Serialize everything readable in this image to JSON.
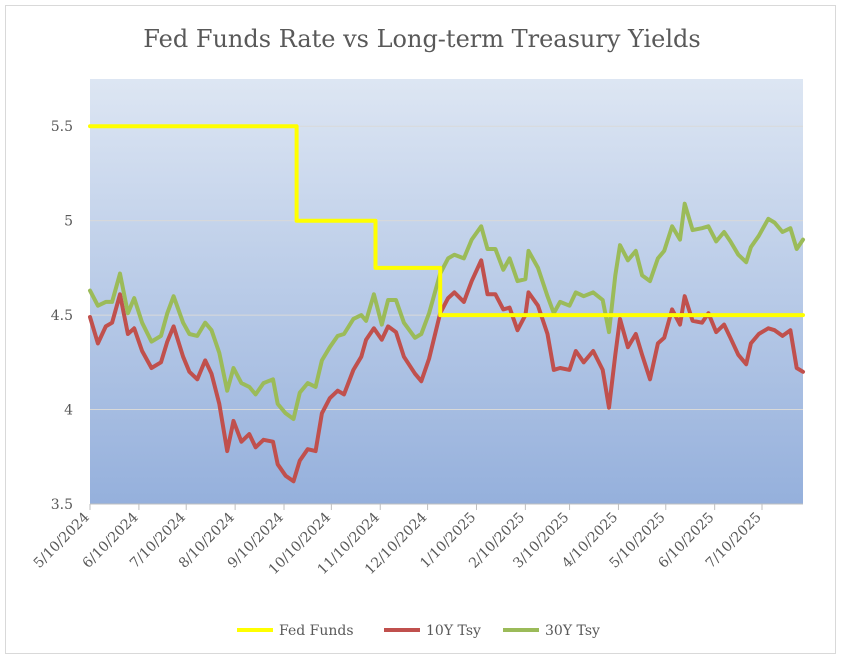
{
  "chart_data": {
    "type": "line",
    "title": "Fed Funds Rate vs Long-term Treasury Yields",
    "xlabel": "",
    "ylabel": "",
    "ylim": [
      3.5,
      5.75
    ],
    "yticks": [
      3.5,
      4,
      4.5,
      5,
      5.5
    ],
    "ytick_labels": [
      "3.5",
      "4",
      "4.5",
      "5",
      "5.5"
    ],
    "x_range": [
      "2024-05-10",
      "2025-08-05"
    ],
    "xticks": [
      "2024-05-10",
      "2024-06-10",
      "2024-07-10",
      "2024-08-10",
      "2024-09-10",
      "2024-10-10",
      "2024-11-10",
      "2024-12-10",
      "2025-01-10",
      "2025-02-10",
      "2025-03-10",
      "2025-04-10",
      "2025-05-10",
      "2025-06-10",
      "2025-07-10"
    ],
    "xtick_labels": [
      "5/10/2024",
      "6/10/2024",
      "7/10/2024",
      "8/10/2024",
      "9/10/2024",
      "10/10/2024",
      "11/10/2024",
      "12/10/2024",
      "1/10/2025",
      "2/10/2025",
      "3/10/2025",
      "4/10/2025",
      "5/10/2025",
      "6/10/2025",
      "7/10/2025"
    ],
    "grid": true,
    "legend_position": "bottom",
    "series": [
      {
        "name": "Fed Funds",
        "color": "#FFFF00",
        "points": [
          [
            "2024-05-10",
            5.5
          ],
          [
            "2024-09-18",
            5.5
          ],
          [
            "2024-09-18",
            5.0
          ],
          [
            "2024-11-07",
            5.0
          ],
          [
            "2024-11-07",
            4.75
          ],
          [
            "2024-12-18",
            4.75
          ],
          [
            "2024-12-18",
            4.5
          ],
          [
            "2025-08-05",
            4.5
          ]
        ]
      },
      {
        "name": "10Y Tsy",
        "color": "#C0504D",
        "points": [
          [
            "2024-05-10",
            4.49
          ],
          [
            "2024-05-15",
            4.35
          ],
          [
            "2024-05-20",
            4.44
          ],
          [
            "2024-05-24",
            4.46
          ],
          [
            "2024-05-29",
            4.61
          ],
          [
            "2024-06-03",
            4.4
          ],
          [
            "2024-06-07",
            4.43
          ],
          [
            "2024-06-12",
            4.31
          ],
          [
            "2024-06-18",
            4.22
          ],
          [
            "2024-06-24",
            4.25
          ],
          [
            "2024-06-28",
            4.36
          ],
          [
            "2024-07-02",
            4.44
          ],
          [
            "2024-07-08",
            4.28
          ],
          [
            "2024-07-12",
            4.2
          ],
          [
            "2024-07-17",
            4.16
          ],
          [
            "2024-07-22",
            4.26
          ],
          [
            "2024-07-26",
            4.19
          ],
          [
            "2024-07-31",
            4.03
          ],
          [
            "2024-08-05",
            3.78
          ],
          [
            "2024-08-09",
            3.94
          ],
          [
            "2024-08-14",
            3.83
          ],
          [
            "2024-08-19",
            3.87
          ],
          [
            "2024-08-23",
            3.8
          ],
          [
            "2024-08-28",
            3.84
          ],
          [
            "2024-09-03",
            3.83
          ],
          [
            "2024-09-06",
            3.71
          ],
          [
            "2024-09-11",
            3.65
          ],
          [
            "2024-09-16",
            3.62
          ],
          [
            "2024-09-20",
            3.73
          ],
          [
            "2024-09-25",
            3.79
          ],
          [
            "2024-09-30",
            3.78
          ],
          [
            "2024-10-04",
            3.98
          ],
          [
            "2024-10-09",
            4.06
          ],
          [
            "2024-10-14",
            4.1
          ],
          [
            "2024-10-18",
            4.08
          ],
          [
            "2024-10-24",
            4.21
          ],
          [
            "2024-10-29",
            4.28
          ],
          [
            "2024-11-01",
            4.37
          ],
          [
            "2024-11-06",
            4.43
          ],
          [
            "2024-11-11",
            4.37
          ],
          [
            "2024-11-15",
            4.44
          ],
          [
            "2024-11-20",
            4.41
          ],
          [
            "2024-11-25",
            4.28
          ],
          [
            "2024-12-02",
            4.19
          ],
          [
            "2024-12-06",
            4.15
          ],
          [
            "2024-12-11",
            4.27
          ],
          [
            "2024-12-18",
            4.51
          ],
          [
            "2024-12-23",
            4.59
          ],
          [
            "2024-12-27",
            4.62
          ],
          [
            "2025-01-02",
            4.57
          ],
          [
            "2025-01-07",
            4.68
          ],
          [
            "2025-01-13",
            4.79
          ],
          [
            "2025-01-17",
            4.61
          ],
          [
            "2025-01-22",
            4.61
          ],
          [
            "2025-01-27",
            4.53
          ],
          [
            "2025-01-31",
            4.54
          ],
          [
            "2025-02-05",
            4.42
          ],
          [
            "2025-02-10",
            4.5
          ],
          [
            "2025-02-12",
            4.62
          ],
          [
            "2025-02-18",
            4.55
          ],
          [
            "2025-02-24",
            4.4
          ],
          [
            "2025-02-28",
            4.21
          ],
          [
            "2025-03-04",
            4.22
          ],
          [
            "2025-03-10",
            4.21
          ],
          [
            "2025-03-14",
            4.31
          ],
          [
            "2025-03-19",
            4.25
          ],
          [
            "2025-03-25",
            4.31
          ],
          [
            "2025-03-31",
            4.21
          ],
          [
            "2025-04-04",
            4.01
          ],
          [
            "2025-04-08",
            4.29
          ],
          [
            "2025-04-11",
            4.48
          ],
          [
            "2025-04-16",
            4.33
          ],
          [
            "2025-04-21",
            4.4
          ],
          [
            "2025-04-25",
            4.29
          ],
          [
            "2025-04-30",
            4.16
          ],
          [
            "2025-05-05",
            4.35
          ],
          [
            "2025-05-09",
            4.38
          ],
          [
            "2025-05-14",
            4.53
          ],
          [
            "2025-05-19",
            4.45
          ],
          [
            "2025-05-22",
            4.6
          ],
          [
            "2025-05-27",
            4.47
          ],
          [
            "2025-06-02",
            4.46
          ],
          [
            "2025-06-06",
            4.51
          ],
          [
            "2025-06-11",
            4.41
          ],
          [
            "2025-06-16",
            4.45
          ],
          [
            "2025-06-20",
            4.38
          ],
          [
            "2025-06-25",
            4.29
          ],
          [
            "2025-06-30",
            4.24
          ],
          [
            "2025-07-03",
            4.35
          ],
          [
            "2025-07-08",
            4.4
          ],
          [
            "2025-07-14",
            4.43
          ],
          [
            "2025-07-18",
            4.42
          ],
          [
            "2025-07-23",
            4.39
          ],
          [
            "2025-07-28",
            4.42
          ],
          [
            "2025-08-01",
            4.22
          ],
          [
            "2025-08-05",
            4.2
          ]
        ]
      },
      {
        "name": "30Y Tsy",
        "color": "#9BBB59",
        "points": [
          [
            "2024-05-10",
            4.63
          ],
          [
            "2024-05-15",
            4.55
          ],
          [
            "2024-05-20",
            4.57
          ],
          [
            "2024-05-24",
            4.57
          ],
          [
            "2024-05-29",
            4.72
          ],
          [
            "2024-06-03",
            4.51
          ],
          [
            "2024-06-07",
            4.59
          ],
          [
            "2024-06-12",
            4.46
          ],
          [
            "2024-06-18",
            4.36
          ],
          [
            "2024-06-24",
            4.39
          ],
          [
            "2024-06-28",
            4.51
          ],
          [
            "2024-07-02",
            4.6
          ],
          [
            "2024-07-08",
            4.46
          ],
          [
            "2024-07-12",
            4.4
          ],
          [
            "2024-07-17",
            4.39
          ],
          [
            "2024-07-22",
            4.46
          ],
          [
            "2024-07-26",
            4.42
          ],
          [
            "2024-07-31",
            4.3
          ],
          [
            "2024-08-05",
            4.1
          ],
          [
            "2024-08-09",
            4.22
          ],
          [
            "2024-08-14",
            4.14
          ],
          [
            "2024-08-19",
            4.12
          ],
          [
            "2024-08-23",
            4.08
          ],
          [
            "2024-08-28",
            4.14
          ],
          [
            "2024-09-03",
            4.16
          ],
          [
            "2024-09-06",
            4.03
          ],
          [
            "2024-09-11",
            3.98
          ],
          [
            "2024-09-16",
            3.95
          ],
          [
            "2024-09-20",
            4.09
          ],
          [
            "2024-09-25",
            4.14
          ],
          [
            "2024-09-30",
            4.12
          ],
          [
            "2024-10-04",
            4.26
          ],
          [
            "2024-10-09",
            4.33
          ],
          [
            "2024-10-14",
            4.39
          ],
          [
            "2024-10-18",
            4.4
          ],
          [
            "2024-10-24",
            4.48
          ],
          [
            "2024-10-29",
            4.5
          ],
          [
            "2024-11-01",
            4.47
          ],
          [
            "2024-11-06",
            4.61
          ],
          [
            "2024-11-11",
            4.45
          ],
          [
            "2024-11-15",
            4.58
          ],
          [
            "2024-11-20",
            4.58
          ],
          [
            "2024-11-25",
            4.46
          ],
          [
            "2024-12-02",
            4.38
          ],
          [
            "2024-12-06",
            4.4
          ],
          [
            "2024-12-11",
            4.51
          ],
          [
            "2024-12-18",
            4.72
          ],
          [
            "2024-12-23",
            4.8
          ],
          [
            "2024-12-27",
            4.82
          ],
          [
            "2025-01-02",
            4.8
          ],
          [
            "2025-01-07",
            4.9
          ],
          [
            "2025-01-13",
            4.97
          ],
          [
            "2025-01-17",
            4.85
          ],
          [
            "2025-01-22",
            4.85
          ],
          [
            "2025-01-27",
            4.74
          ],
          [
            "2025-01-31",
            4.8
          ],
          [
            "2025-02-05",
            4.68
          ],
          [
            "2025-02-10",
            4.69
          ],
          [
            "2025-02-12",
            4.84
          ],
          [
            "2025-02-18",
            4.75
          ],
          [
            "2025-02-24",
            4.6
          ],
          [
            "2025-02-28",
            4.51
          ],
          [
            "2025-03-04",
            4.57
          ],
          [
            "2025-03-10",
            4.55
          ],
          [
            "2025-03-14",
            4.62
          ],
          [
            "2025-03-19",
            4.6
          ],
          [
            "2025-03-25",
            4.62
          ],
          [
            "2025-03-31",
            4.58
          ],
          [
            "2025-04-04",
            4.41
          ],
          [
            "2025-04-08",
            4.71
          ],
          [
            "2025-04-11",
            4.87
          ],
          [
            "2025-04-16",
            4.79
          ],
          [
            "2025-04-21",
            4.84
          ],
          [
            "2025-04-25",
            4.71
          ],
          [
            "2025-04-30",
            4.68
          ],
          [
            "2025-05-05",
            4.8
          ],
          [
            "2025-05-09",
            4.84
          ],
          [
            "2025-05-14",
            4.97
          ],
          [
            "2025-05-19",
            4.9
          ],
          [
            "2025-05-22",
            5.09
          ],
          [
            "2025-05-27",
            4.95
          ],
          [
            "2025-06-02",
            4.96
          ],
          [
            "2025-06-06",
            4.97
          ],
          [
            "2025-06-11",
            4.89
          ],
          [
            "2025-06-16",
            4.94
          ],
          [
            "2025-06-20",
            4.89
          ],
          [
            "2025-06-25",
            4.82
          ],
          [
            "2025-06-30",
            4.78
          ],
          [
            "2025-07-03",
            4.86
          ],
          [
            "2025-07-08",
            4.92
          ],
          [
            "2025-07-14",
            5.01
          ],
          [
            "2025-07-18",
            4.99
          ],
          [
            "2025-07-23",
            4.94
          ],
          [
            "2025-07-28",
            4.96
          ],
          [
            "2025-08-01",
            4.85
          ],
          [
            "2025-08-05",
            4.9
          ]
        ]
      }
    ]
  }
}
